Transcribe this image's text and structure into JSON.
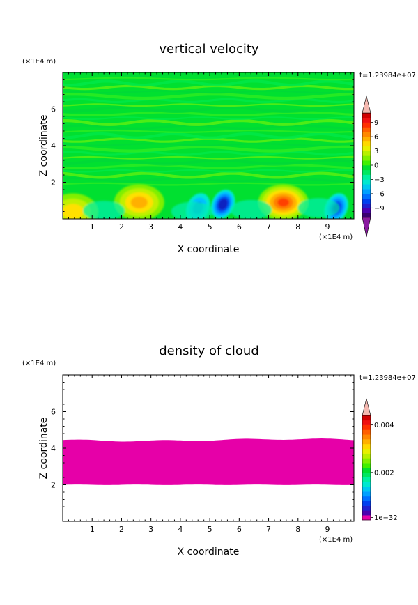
{
  "chart_data": [
    {
      "type": "heatmap",
      "title": "vertical velocity",
      "xlabel": "X coordinate",
      "ylabel": "Z coordinate",
      "x_unit": "(×1E4 m)",
      "y_unit": "(×1E4 m)",
      "time_label": "t=1.23984e+07",
      "xlim": [
        0,
        9.9
      ],
      "ylim": [
        0,
        8
      ],
      "xticks": [
        1,
        2,
        3,
        4,
        5,
        6,
        7,
        8,
        9
      ],
      "yticks": [
        2,
        4,
        6
      ],
      "colorbar": {
        "min": -11,
        "max": 11,
        "levels": 22,
        "ticks": [
          {
            "value": 9,
            "label": "9"
          },
          {
            "value": 6,
            "label": "6"
          },
          {
            "value": 3,
            "label": "3"
          },
          {
            "value": 0,
            "label": "0"
          },
          {
            "value": -3,
            "label": "−3"
          },
          {
            "value": -6,
            "label": "−6"
          },
          {
            "value": -9,
            "label": "−9"
          }
        ],
        "arrow_top_color": "#f4b8b0",
        "arrow_bottom_color": "#8a1aa0"
      },
      "features": [
        {
          "kind": "updraft",
          "x": 7.5,
          "z": 0.9,
          "peak": 8
        },
        {
          "kind": "updraft",
          "x": 2.6,
          "z": 0.9,
          "peak": 4
        },
        {
          "kind": "updraft",
          "x": 0.35,
          "z": 0.4,
          "peak": 3
        },
        {
          "kind": "downdraft",
          "x": 5.45,
          "z": 0.8,
          "peak": -7
        },
        {
          "kind": "downdraft",
          "x": 9.3,
          "z": 0.6,
          "peak": -6
        },
        {
          "kind": "downdraft",
          "x": 4.6,
          "z": 0.6,
          "peak": -3
        }
      ]
    },
    {
      "type": "heatmap",
      "title": "density of cloud",
      "xlabel": "X coordinate",
      "ylabel": "Z coordinate",
      "x_unit": "(×1E4 m)",
      "y_unit": "(×1E4 m)",
      "time_label": "t=1.23984e+07",
      "xlim": [
        0,
        9.9
      ],
      "ylim": [
        0,
        8
      ],
      "xticks": [
        1,
        2,
        3,
        4,
        5,
        6,
        7,
        8,
        9
      ],
      "yticks": [
        2,
        4,
        6
      ],
      "colorbar": {
        "min": 0,
        "max": 0.0044,
        "levels": 22,
        "ticks": [
          {
            "value": 0.004,
            "label": "0.004"
          },
          {
            "value": 0.002,
            "label": "0.002"
          },
          {
            "value": 0,
            "label": "1e−32"
          }
        ],
        "arrow_top_color": "#f4b8b0"
      },
      "cloud_layer": {
        "z_bottom": 2.0,
        "z_top": 4.45,
        "color": "#e600a8"
      }
    }
  ]
}
